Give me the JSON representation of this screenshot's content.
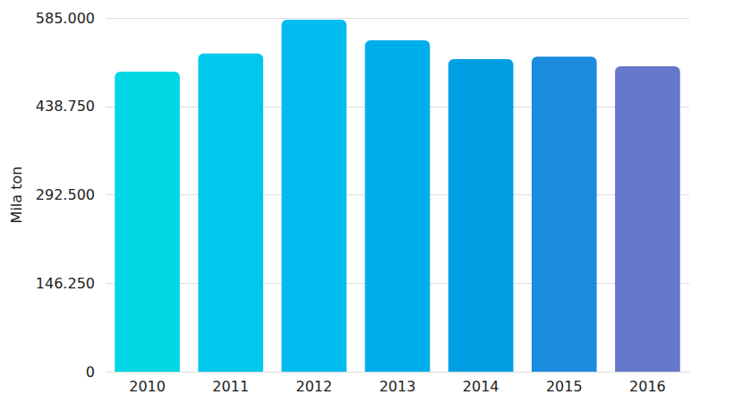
{
  "chart_data": {
    "type": "bar",
    "categories": [
      "2010",
      "2011",
      "2012",
      "2013",
      "2014",
      "2015",
      "2016"
    ],
    "values": [
      496,
      526,
      582,
      548,
      517,
      521,
      505
    ],
    "colors": [
      "#00d6e4",
      "#00c8ec",
      "#00bbee",
      "#00adeb",
      "#009fe3",
      "#1a8bdd",
      "#6578cc"
    ],
    "ylabel": "Mila ton",
    "ylim": [
      0,
      585
    ],
    "yticks": [
      0,
      {
        "value": 146.25,
        "label": "146.250"
      },
      {
        "value": 292.5,
        "label": "292.500"
      },
      {
        "value": 438.75,
        "label": "438.750"
      },
      {
        "value": 585,
        "label": "585.000"
      }
    ],
    "grid": true
  }
}
